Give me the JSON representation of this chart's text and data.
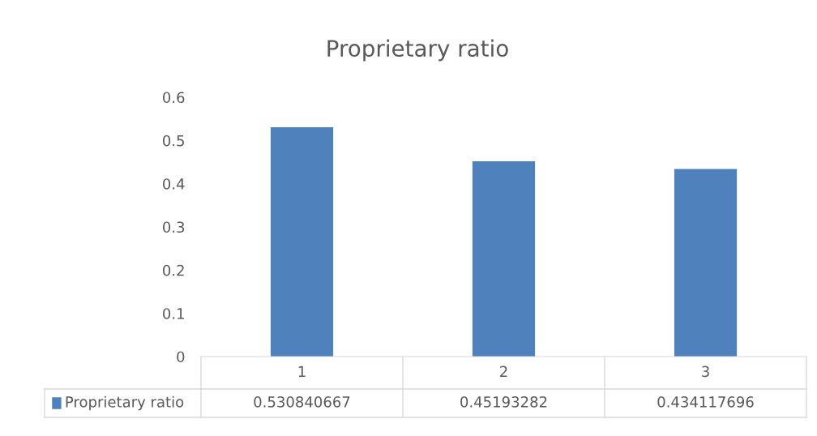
{
  "chart_data": {
    "type": "bar",
    "title": "Proprietary ratio",
    "categories": [
      "1",
      "2",
      "3"
    ],
    "series": [
      {
        "name": "Proprietary ratio",
        "color": "#4f81bd",
        "values": [
          0.530840667,
          0.45193282,
          0.434117696
        ]
      }
    ],
    "ylim": [
      0,
      0.6
    ],
    "yticks": [
      0,
      0.1,
      0.2,
      0.3,
      0.4,
      0.5,
      0.6
    ],
    "grid": false,
    "legend": "bottom",
    "data_labels": true
  }
}
